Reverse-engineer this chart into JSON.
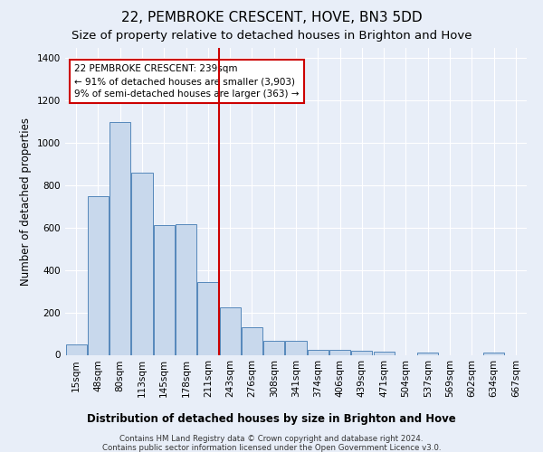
{
  "title": "22, PEMBROKE CRESCENT, HOVE, BN3 5DD",
  "subtitle": "Size of property relative to detached houses in Brighton and Hove",
  "xlabel": "Distribution of detached houses by size in Brighton and Hove",
  "ylabel": "Number of detached properties",
  "footer_line1": "Contains HM Land Registry data © Crown copyright and database right 2024.",
  "footer_line2": "Contains public sector information licensed under the Open Government Licence v3.0.",
  "categories": [
    "15sqm",
    "48sqm",
    "80sqm",
    "113sqm",
    "145sqm",
    "178sqm",
    "211sqm",
    "243sqm",
    "276sqm",
    "308sqm",
    "341sqm",
    "374sqm",
    "406sqm",
    "439sqm",
    "471sqm",
    "504sqm",
    "537sqm",
    "569sqm",
    "602sqm",
    "634sqm",
    "667sqm"
  ],
  "values": [
    47,
    750,
    1100,
    860,
    610,
    615,
    345,
    225,
    130,
    65,
    65,
    25,
    25,
    20,
    15,
    0,
    10,
    0,
    0,
    10,
    0
  ],
  "bar_color": "#c8d8ec",
  "bar_edge_color": "#5588bb",
  "vline_color": "#cc0000",
  "ylim": [
    0,
    1450
  ],
  "yticks": [
    0,
    200,
    400,
    600,
    800,
    1000,
    1200,
    1400
  ],
  "annotation_title": "22 PEMBROKE CRESCENT: 239sqm",
  "annotation_line1": "← 91% of detached houses are smaller (3,903)",
  "annotation_line2": "9% of semi-detached houses are larger (363) →",
  "annotation_box_color": "#cc0000",
  "bg_color": "#e8eef8",
  "plot_bg_color": "#e8eef8",
  "title_fontsize": 11,
  "subtitle_fontsize": 9.5,
  "axis_label_fontsize": 8.5,
  "tick_fontsize": 7.5,
  "annotation_fontsize": 7.5,
  "footer_fontsize": 6.2
}
